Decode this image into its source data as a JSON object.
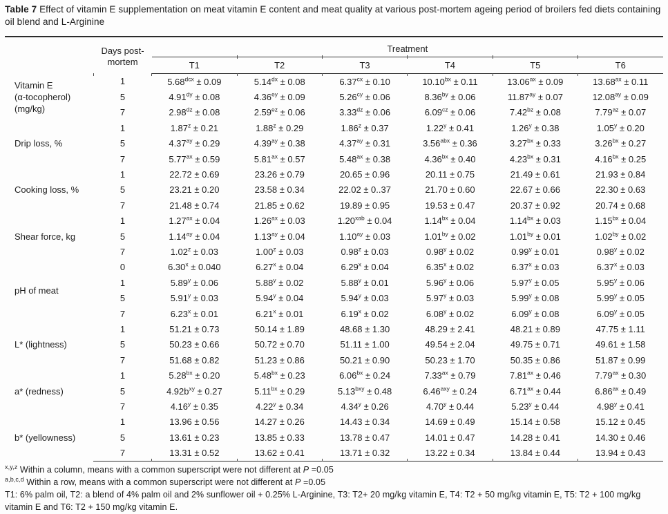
{
  "title": {
    "label": "Table 7",
    "text": " Effect of vitamin E supplementation on meat vitamin E content and meat quality at various post-mortem ageing period of broilers fed diets containing oil blend and L-Arginine"
  },
  "header": {
    "days_line1": "Days post-",
    "days_line2": "mortem",
    "treatment": "Treatment",
    "cols": [
      "T1",
      "T2",
      "T3",
      "T4",
      "T5",
      "T6"
    ]
  },
  "groups": [
    {
      "label": [
        "Vitamin E",
        "(α-tocopherol)",
        "(mg/kg)"
      ],
      "rows": [
        {
          "day": "1",
          "cells": [
            [
              "5.68",
              "dcx",
              "± 0.09"
            ],
            [
              "5.14",
              "dx",
              "± 0.08"
            ],
            [
              "6.37",
              "cx",
              "± 0.10"
            ],
            [
              "10.10",
              "bx",
              "± 0.11"
            ],
            [
              "13.06",
              "ax",
              "± 0.09"
            ],
            [
              "13.68",
              "ax",
              "± 0.11"
            ]
          ]
        },
        {
          "day": "5",
          "cells": [
            [
              "4.91",
              "dy",
              "± 0.08"
            ],
            [
              "4.36",
              "ey",
              "± 0.09"
            ],
            [
              "5.26",
              "cy",
              "± 0.06"
            ],
            [
              "8.36",
              "by",
              "± 0.06"
            ],
            [
              "11.87",
              "ay",
              "± 0.07"
            ],
            [
              "12.08",
              "ay",
              "± 0.09"
            ]
          ]
        },
        {
          "day": "7",
          "cells": [
            [
              "2.98",
              "dz",
              "± 0.08"
            ],
            [
              "2.59",
              "ez",
              "± 0.06"
            ],
            [
              "3.33",
              "dz",
              "± 0.06"
            ],
            [
              "6.09",
              "cz",
              "± 0.06"
            ],
            [
              "7.42",
              "bz",
              "± 0.08"
            ],
            [
              "7.79",
              "az",
              "± 0.07"
            ]
          ]
        }
      ]
    },
    {
      "label": [
        "Drip loss, %"
      ],
      "rows": [
        {
          "day": "1",
          "cells": [
            [
              "1.87",
              "z",
              "± 0.21"
            ],
            [
              "1.88",
              "z",
              "± 0.29"
            ],
            [
              "1.86",
              "z",
              "± 0.37"
            ],
            [
              "1.22",
              "y",
              "± 0.41"
            ],
            [
              "1.26",
              "y",
              "± 0.38"
            ],
            [
              "1.05",
              "y",
              "± 0.20"
            ]
          ]
        },
        {
          "day": "5",
          "cells": [
            [
              "4.37",
              "ay",
              "± 0.29"
            ],
            [
              "4.39",
              "ay",
              "± 0.38"
            ],
            [
              "4.37",
              "ay",
              "± 0.31"
            ],
            [
              "3.56",
              "abx",
              "± 0.36"
            ],
            [
              "3.27",
              "bx",
              "± 0.33"
            ],
            [
              "3.26",
              "bx",
              "± 0.27"
            ]
          ]
        },
        {
          "day": "7",
          "cells": [
            [
              "5.77",
              "ax",
              "± 0.59"
            ],
            [
              "5.81",
              "ax",
              "± 0.57"
            ],
            [
              "5.48",
              "ax",
              "± 0.38"
            ],
            [
              "4.36",
              "bx",
              "± 0.40"
            ],
            [
              "4.23",
              "bx",
              "± 0.31"
            ],
            [
              "4.16",
              "bx",
              "± 0.25"
            ]
          ]
        }
      ]
    },
    {
      "label": [
        "Cooking loss, %"
      ],
      "rows": [
        {
          "day": "1",
          "cells": [
            [
              "22.72",
              "",
              "± 0.69"
            ],
            [
              "23.26",
              "",
              "± 0.79"
            ],
            [
              "20.65",
              "",
              "± 0.96"
            ],
            [
              "20.11",
              "",
              "± 0.75"
            ],
            [
              "21.49",
              "",
              "± 0.61"
            ],
            [
              "21.93",
              "",
              "± 0.84"
            ]
          ]
        },
        {
          "day": "5",
          "cells": [
            [
              "23.21",
              "",
              "± 0.20"
            ],
            [
              "23.58",
              "",
              "± 0.34"
            ],
            [
              "22.02",
              "",
              "± 0..37"
            ],
            [
              "21.70",
              "",
              "± 0.60"
            ],
            [
              "22.67",
              "",
              "± 0.66"
            ],
            [
              "22.30",
              "",
              "± 0.63"
            ]
          ]
        },
        {
          "day": "7",
          "cells": [
            [
              "21.48",
              "",
              "± 0.74"
            ],
            [
              "21.85",
              "",
              "± 0.62"
            ],
            [
              "19.89",
              "",
              "± 0.95"
            ],
            [
              "19.53",
              "",
              "± 0.47"
            ],
            [
              "20.37",
              "",
              "± 0.92"
            ],
            [
              "20.74",
              "",
              "± 0.68"
            ]
          ]
        }
      ]
    },
    {
      "label": [
        "Shear force, kg"
      ],
      "rows": [
        {
          "day": "1",
          "cells": [
            [
              "1.27",
              "ax",
              "± 0.04"
            ],
            [
              "1.26",
              "ax",
              "± 0.03"
            ],
            [
              "1.20",
              "xab",
              "± 0.04"
            ],
            [
              "1.14",
              "bx",
              "± 0.04"
            ],
            [
              "1.14",
              "bx",
              "± 0.03"
            ],
            [
              "1.15",
              "bx",
              "± 0.04"
            ]
          ]
        },
        {
          "day": "5",
          "cells": [
            [
              "1.14",
              "ay",
              "± 0.04"
            ],
            [
              "1.13",
              "ay",
              "± 0.04"
            ],
            [
              "1.10",
              "ay",
              "± 0.03"
            ],
            [
              "1.01",
              "by",
              "± 0.02"
            ],
            [
              "1.01",
              "by",
              "± 0.01"
            ],
            [
              "1.02",
              "by",
              "± 0.02"
            ]
          ]
        },
        {
          "day": "7",
          "cells": [
            [
              "1.02",
              "z",
              "± 0.03"
            ],
            [
              "1.00",
              "z",
              "± 0.03"
            ],
            [
              "0.98",
              "z",
              "± 0.03"
            ],
            [
              "0.98",
              "y",
              "± 0.02"
            ],
            [
              "0.99",
              "y",
              "± 0.01"
            ],
            [
              "0.98",
              "y",
              "± 0.02"
            ]
          ]
        }
      ]
    },
    {
      "label": [
        "pH of meat"
      ],
      "rows": [
        {
          "day": "0",
          "cells": [
            [
              "6.30",
              "x",
              "± 0.040"
            ],
            [
              "6.27",
              "x",
              "± 0.04"
            ],
            [
              "6.29",
              "x",
              "± 0.04"
            ],
            [
              "6.35",
              "x",
              "± 0.02"
            ],
            [
              "6.37",
              "x",
              "± 0.03"
            ],
            [
              "6.37",
              "x",
              "± 0.03"
            ]
          ]
        },
        {
          "day": "1",
          "cells": [
            [
              "5.89",
              "y",
              "± 0.06"
            ],
            [
              "5.88",
              "y",
              "± 0.02"
            ],
            [
              "5.88",
              "y",
              "± 0.01"
            ],
            [
              "5.96",
              "y",
              "± 0.06"
            ],
            [
              "5.97",
              "y",
              "± 0.05"
            ],
            [
              "5.95",
              "y",
              "± 0.06"
            ]
          ]
        },
        {
          "day": "5",
          "cells": [
            [
              "5.91",
              "y",
              "± 0.03"
            ],
            [
              "5.94",
              "y",
              "± 0.04"
            ],
            [
              "5.94",
              "y",
              "± 0.03"
            ],
            [
              "5.97",
              "y",
              "± 0.03"
            ],
            [
              "5.99",
              "y",
              "± 0.08"
            ],
            [
              "5.99",
              "y",
              "± 0.05"
            ]
          ]
        },
        {
          "day": "7",
          "cells": [
            [
              "6.23",
              "x",
              "± 0.01"
            ],
            [
              "6.21",
              "x",
              "± 0.01"
            ],
            [
              "6.19",
              "x",
              "± 0.02"
            ],
            [
              "6.08",
              "y",
              "± 0.02"
            ],
            [
              "6.09",
              "y",
              "± 0.08"
            ],
            [
              "6.09",
              "y",
              "± 0.05"
            ]
          ]
        }
      ]
    },
    {
      "label": [
        "L* (lightness)"
      ],
      "rows": [
        {
          "day": "1",
          "cells": [
            [
              "51.21",
              "",
              "± 0.73"
            ],
            [
              "50.14",
              "",
              "± 1.89"
            ],
            [
              "48.68",
              "",
              "± 1.30"
            ],
            [
              "48.29",
              "",
              "± 2.41"
            ],
            [
              "48.21",
              "",
              "± 0.89"
            ],
            [
              "47.75",
              "",
              "± 1.11"
            ]
          ]
        },
        {
          "day": "5",
          "cells": [
            [
              "50.23",
              "",
              "± 0.66"
            ],
            [
              "50.72",
              "",
              "± 0.70"
            ],
            [
              "51.11",
              "",
              "± 1.00"
            ],
            [
              "49.54",
              "",
              "± 2.04"
            ],
            [
              "49.75",
              "",
              "± 0.71"
            ],
            [
              "49.61",
              "",
              "± 1.58"
            ]
          ]
        },
        {
          "day": "7",
          "cells": [
            [
              "51.68",
              "",
              "± 0.82"
            ],
            [
              "51.23",
              "",
              "± 0.86"
            ],
            [
              "50.21",
              "",
              "± 0.90"
            ],
            [
              "50.23",
              "",
              "± 1.70"
            ],
            [
              "50.35",
              "",
              "± 0.86"
            ],
            [
              "51.87",
              "",
              "± 0.99"
            ]
          ]
        }
      ]
    },
    {
      "label": [
        "a* (redness)"
      ],
      "rows": [
        {
          "day": "1",
          "cells": [
            [
              "5.28",
              "bx",
              "± 0.20"
            ],
            [
              "5.48",
              "bx",
              "± 0.23"
            ],
            [
              "6.06",
              "bx",
              "± 0.24"
            ],
            [
              "7.33",
              "ax",
              "± 0.79"
            ],
            [
              "7.81",
              "ax",
              "± 0.46"
            ],
            [
              "7.79",
              "ax",
              "± 0.30"
            ]
          ]
        },
        {
          "day": "5",
          "cells": [
            [
              "4.92b",
              "xy",
              "± 0.27"
            ],
            [
              "5.11",
              "bx",
              "± 0.29"
            ],
            [
              "5.13",
              "bxy",
              "± 0.48"
            ],
            [
              "6.46",
              "axy",
              "± 0.24"
            ],
            [
              "6.71",
              "ax",
              "± 0.44"
            ],
            [
              "6.86",
              "ax",
              "± 0.49"
            ]
          ]
        },
        {
          "day": "7",
          "cells": [
            [
              "4.16",
              "y",
              "± 0.35"
            ],
            [
              "4.22",
              "y",
              "± 0.34"
            ],
            [
              "4.34",
              "y",
              "± 0.26"
            ],
            [
              "4.70",
              "y",
              "± 0.44"
            ],
            [
              "5.23",
              "y",
              "± 0.44"
            ],
            [
              "4.98",
              "y",
              "± 0.41"
            ]
          ]
        }
      ]
    },
    {
      "label": [
        "b* (yellowness)"
      ],
      "rows": [
        {
          "day": "1",
          "cells": [
            [
              "13.96",
              "",
              "± 0.56"
            ],
            [
              "14.27",
              "",
              "± 0.26"
            ],
            [
              "14.43",
              "",
              "± 0.34"
            ],
            [
              "14.69",
              "",
              "± 0.49"
            ],
            [
              "15.14",
              "",
              "± 0.58"
            ],
            [
              "15.12",
              "",
              "± 0.45"
            ]
          ]
        },
        {
          "day": "5",
          "cells": [
            [
              "13.61",
              "",
              "± 0.23"
            ],
            [
              "13.85",
              "",
              "± 0.33"
            ],
            [
              "13.78",
              "",
              "± 0.47"
            ],
            [
              "14.01",
              "",
              "± 0.47"
            ],
            [
              "14.28",
              "",
              "± 0.41"
            ],
            [
              "14.30",
              "",
              "± 0.46"
            ]
          ]
        },
        {
          "day": "7",
          "cells": [
            [
              "13.31",
              "",
              "± 0.52"
            ],
            [
              "13.62",
              "",
              "± 0.41"
            ],
            [
              "13.71",
              "",
              "± 0.32"
            ],
            [
              "13.22",
              "",
              "± 0.34"
            ],
            [
              "13.84",
              "",
              "± 0.44"
            ],
            [
              "13.94",
              "",
              "± 0.43"
            ]
          ]
        }
      ]
    }
  ],
  "footnotes": [
    {
      "sup": "x,y,z",
      "text": " Within a column, means with a common superscript were not different at ",
      "p": "P",
      "eq": " =0.05"
    },
    {
      "sup": "a,b,c,d",
      "text": " Within a row, means with a common superscript were not different at ",
      "p": "P",
      "eq": " =0.05"
    },
    {
      "text": "T1: 6% palm oil, T2: a blend of 4% palm oil and 2% sunflower oil + 0.25% L-Arginine, T3: T2+ 20 mg/kg vitamin E, T4: T2 + 50 mg/kg vitamin E, T5: T2 + 100 mg/kg vitamin E and T6: T2 + 150 mg/kg vitamin E."
    }
  ]
}
